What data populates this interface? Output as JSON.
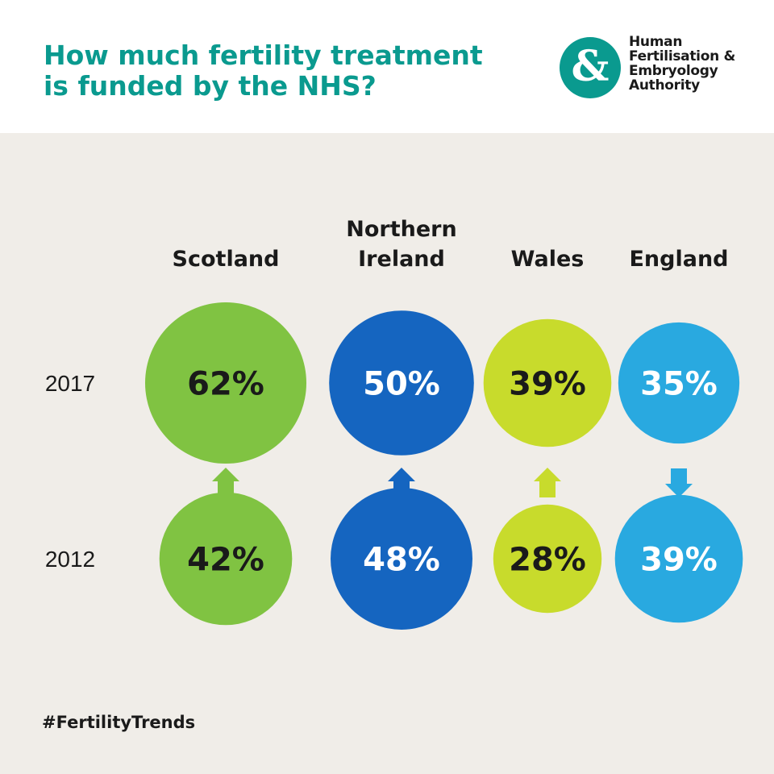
{
  "header": {
    "title_line1": "How much fertility treatment",
    "title_line2": "is funded by the NHS?",
    "logo_glyph": "&",
    "logo_icon": "ampersand-icon",
    "logo_lines": [
      "Human",
      "Fertilisation &",
      "Embryology",
      "Authority"
    ]
  },
  "footer": {
    "hashtag": "#FertilityTrends"
  },
  "colors": {
    "teal": "#0a9a8f",
    "Scotland": "#80c342",
    "Northern Ireland": "#1565c0",
    "Wales": "#c8db2c",
    "England": "#29a9e0"
  },
  "chart_data": {
    "type": "bubble",
    "title": "How much fertility treatment is funded by the NHS?",
    "unit": "%",
    "categories": [
      [
        "Scotland"
      ],
      [
        "Northern",
        "Ireland"
      ],
      [
        "Wales"
      ],
      [
        "England"
      ]
    ],
    "years": [
      "2017",
      "2012"
    ],
    "series": [
      {
        "name": "2017",
        "values": [
          62,
          50,
          39,
          35
        ]
      },
      {
        "name": "2012",
        "values": [
          42,
          48,
          28,
          39
        ]
      }
    ],
    "trend": [
      "up",
      "up",
      "up",
      "down"
    ],
    "value_label_colors": [
      [
        "#1a1a1a",
        "#ffffff",
        "#1a1a1a",
        "#ffffff"
      ],
      [
        "#1a1a1a",
        "#ffffff",
        "#1a1a1a",
        "#ffffff"
      ]
    ]
  }
}
